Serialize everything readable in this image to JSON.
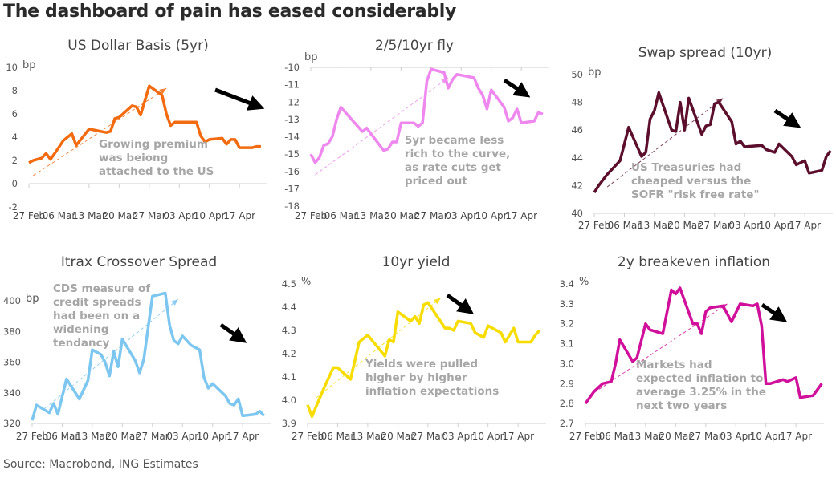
{
  "title": "The dashboard of pain has eased considerably",
  "source": "Source: Macrobond, ING Estimates",
  "chart_data": [
    {
      "type": "line",
      "title": "US Dollar Basis (5yr)",
      "unit": "bp",
      "color": "#f26b10",
      "ylim": [
        -2,
        10
      ],
      "yticks": [
        "10",
        "8",
        "6",
        "4",
        "2",
        "0",
        "-2"
      ],
      "ytick_values": [
        10,
        8,
        6,
        4,
        2,
        0,
        -2
      ],
      "xticks": [
        "27 Feb",
        "06 Mar",
        "13 Mar",
        "20 Mar",
        "27 Mar",
        "03 Apr",
        "10 Apr",
        "17 Apr"
      ],
      "axis_at": 0,
      "points": [
        [
          "27 Feb",
          1.8
        ],
        [
          "28 Feb",
          2.0
        ],
        [
          "2 Mar",
          2.2
        ],
        [
          "3 Mar",
          2.6
        ],
        [
          "4 Mar",
          2.1
        ],
        [
          "5 Mar",
          2.6
        ],
        [
          "7 Mar",
          3.7
        ],
        [
          "9 Mar",
          4.3
        ],
        [
          "10 Mar",
          3.3
        ],
        [
          "13 Mar",
          4.7
        ],
        [
          "17 Mar",
          4.4
        ],
        [
          "18 Mar",
          4.5
        ],
        [
          "19 Mar",
          5.6
        ],
        [
          "20 Mar",
          5.7
        ],
        [
          "23 Mar",
          6.7
        ],
        [
          "24 Mar",
          6.6
        ],
        [
          "25 Mar",
          5.9
        ],
        [
          "27 Mar",
          8.4
        ],
        [
          "30 Mar",
          7.6
        ],
        [
          "31 Mar",
          6.0
        ],
        [
          "1 Apr",
          5.0
        ],
        [
          "2 Apr",
          5.3
        ],
        [
          "7 Apr",
          5.3
        ],
        [
          "8 Apr",
          4.1
        ],
        [
          "9 Apr",
          3.6
        ],
        [
          "10 Apr",
          3.8
        ],
        [
          "13 Apr",
          3.9
        ],
        [
          "14 Apr",
          3.4
        ],
        [
          "15 Apr",
          3.8
        ],
        [
          "16 Apr",
          3.8
        ],
        [
          "17 Apr",
          3.1
        ],
        [
          "20 Apr",
          3.1
        ],
        [
          "21 Apr",
          3.2
        ],
        [
          "22 Apr",
          3.2
        ]
      ],
      "trend": [
        [
          "28 Feb",
          0.7
        ],
        [
          "31 Mar",
          8.2
        ]
      ],
      "annotation": [
        "Growing premium",
        "was beiong",
        "attached to the US"
      ]
    },
    {
      "type": "line",
      "title": "2/5/10yr fly",
      "unit": "bp",
      "color": "#ee88ee",
      "ylim": [
        -18,
        -10
      ],
      "yticks": [
        "-10",
        "-11",
        "-12",
        "-13",
        "-14",
        "-15",
        "-16",
        "-17",
        "-18"
      ],
      "ytick_values": [
        -10,
        -11,
        -12,
        -13,
        -14,
        -15,
        -16,
        -17,
        -18
      ],
      "xticks": [
        "27 Feb",
        "06 Mar",
        "13 Mar",
        "20 Mar",
        "27 Mar",
        "03 Apr",
        "10 Apr",
        "17 Apr"
      ],
      "axis_at": -10,
      "points": [
        [
          "27 Feb",
          -15.0
        ],
        [
          "28 Feb",
          -15.5
        ],
        [
          "1 Mar",
          -15.2
        ],
        [
          "2 Mar",
          -14.5
        ],
        [
          "3 Mar",
          -14.4
        ],
        [
          "4 Mar",
          -14.0
        ],
        [
          "5 Mar",
          -13.0
        ],
        [
          "6 Mar",
          -12.3
        ],
        [
          "11 Mar",
          -13.7
        ],
        [
          "12 Mar",
          -13.5
        ],
        [
          "16 Mar",
          -14.8
        ],
        [
          "17 Mar",
          -14.7
        ],
        [
          "18 Mar",
          -14.3
        ],
        [
          "19 Mar",
          -14.3
        ],
        [
          "20 Mar",
          -13.2
        ],
        [
          "23 Mar",
          -13.2
        ],
        [
          "24 Mar",
          -13.4
        ],
        [
          "25 Mar",
          -13.2
        ],
        [
          "26 Mar",
          -10.8
        ],
        [
          "27 Mar",
          -10.1
        ],
        [
          "30 Mar",
          -10.3
        ],
        [
          "31 Mar",
          -11.2
        ],
        [
          "1 Apr",
          -10.7
        ],
        [
          "2 Apr",
          -10.4
        ],
        [
          "6 Apr",
          -10.6
        ],
        [
          "7 Apr",
          -11.2
        ],
        [
          "8 Apr",
          -11.6
        ],
        [
          "9 Apr",
          -12.4
        ],
        [
          "10 Apr",
          -11.3
        ],
        [
          "13 Apr",
          -12.3
        ],
        [
          "14 Apr",
          -13.1
        ],
        [
          "15 Apr",
          -12.9
        ],
        [
          "16 Apr",
          -12.4
        ],
        [
          "17 Apr",
          -13.2
        ],
        [
          "20 Apr",
          -13.1
        ],
        [
          "21 Apr",
          -12.6
        ],
        [
          "22 Apr",
          -12.7
        ]
      ],
      "trend": [
        [
          "28 Feb",
          -16.2
        ],
        [
          "31 Mar",
          -10.6
        ]
      ],
      "annotation": [
        "5yr became less",
        "rich to the curve,",
        "as rate cuts get",
        "priced out"
      ]
    },
    {
      "type": "line",
      "title": "Swap spread (10yr)",
      "unit": "bp",
      "color": "#5c0f2c",
      "ylim": [
        40,
        50
      ],
      "yticks": [
        "50",
        "48",
        "46",
        "44",
        "42",
        "40"
      ],
      "ytick_values": [
        50,
        48,
        46,
        44,
        42,
        40
      ],
      "xticks": [
        "27 Feb",
        "06 Mar",
        "13 Mar",
        "20 Mar",
        "27 Mar",
        "03 Apr",
        "10 Apr",
        "17 Apr"
      ],
      "axis_at": 40,
      "points": [
        [
          "27 Feb",
          41.5
        ],
        [
          "28 Feb",
          42.0
        ],
        [
          "2 Mar",
          42.8
        ],
        [
          "5 Mar",
          43.8
        ],
        [
          "6 Mar",
          45.0
        ],
        [
          "7 Mar",
          46.2
        ],
        [
          "10 Mar",
          44.1
        ],
        [
          "11 Mar",
          44.4
        ],
        [
          "12 Mar",
          46.8
        ],
        [
          "13 Mar",
          47.4
        ],
        [
          "14 Mar",
          48.7
        ],
        [
          "17 Mar",
          46.0
        ],
        [
          "18 Mar",
          45.9
        ],
        [
          "19 Mar",
          48.0
        ],
        [
          "20 Mar",
          46.0
        ],
        [
          "21 Mar",
          48.3
        ],
        [
          "24 Mar",
          45.7
        ],
        [
          "25 Mar",
          46.3
        ],
        [
          "26 Mar",
          46.4
        ],
        [
          "27 Mar",
          47.9
        ],
        [
          "28 Mar",
          48.0
        ],
        [
          "31 Mar",
          46.6
        ],
        [
          "1 Apr",
          45.0
        ],
        [
          "2 Apr",
          45.2
        ],
        [
          "3 Apr",
          44.8
        ],
        [
          "7 Apr",
          44.9
        ],
        [
          "8 Apr",
          44.6
        ],
        [
          "10 Apr",
          44.4
        ],
        [
          "11 Apr",
          45.0
        ],
        [
          "14 Apr",
          44.1
        ],
        [
          "15 Apr",
          43.5
        ],
        [
          "17 Apr",
          43.8
        ],
        [
          "18 Apr",
          42.9
        ],
        [
          "21 Apr",
          43.1
        ],
        [
          "22 Apr",
          44.1
        ],
        [
          "23 Apr",
          44.5
        ]
      ],
      "trend": [
        [
          "2 Mar",
          41.9
        ],
        [
          "29 Mar",
          48.3
        ]
      ],
      "annotation": [
        "US Treasuries had",
        "cheaped versus the",
        "SOFR \"risk free rate\""
      ]
    },
    {
      "type": "line",
      "title": "Itrax Crossover Spread",
      "unit": "bp",
      "color": "#7cc6f0",
      "ylim": [
        320,
        400
      ],
      "yticks": [
        "400",
        "380",
        "360",
        "340",
        "320"
      ],
      "ytick_values": [
        400,
        380,
        360,
        340,
        320
      ],
      "xticks": [
        "27 Feb",
        "06 Mar",
        "13 Mar",
        "20 Mar",
        "27 Mar",
        "03 Apr",
        "10 Apr",
        "17 Apr"
      ],
      "axis_at": 320,
      "points": [
        [
          "27 Feb",
          322
        ],
        [
          "28 Feb",
          332
        ],
        [
          "3 Mar",
          327
        ],
        [
          "4 Mar",
          333
        ],
        [
          "5 Mar",
          326
        ],
        [
          "7 Mar",
          349
        ],
        [
          "10 Mar",
          336
        ],
        [
          "12 Mar",
          348
        ],
        [
          "13 Mar",
          368
        ],
        [
          "15 Mar",
          365
        ],
        [
          "16 Mar",
          360
        ],
        [
          "17 Mar",
          351
        ],
        [
          "18 Mar",
          367
        ],
        [
          "19 Mar",
          357
        ],
        [
          "20 Mar",
          375
        ],
        [
          "23 Mar",
          361
        ],
        [
          "24 Mar",
          353
        ],
        [
          "25 Mar",
          362
        ],
        [
          "27 Mar",
          403
        ],
        [
          "30 Mar",
          405
        ],
        [
          "31 Mar",
          384
        ],
        [
          "1 Apr",
          374
        ],
        [
          "2 Apr",
          372
        ],
        [
          "3 Apr",
          377
        ],
        [
          "5 Apr",
          371
        ],
        [
          "7 Apr",
          368
        ],
        [
          "8 Apr",
          350
        ],
        [
          "9 Apr",
          343
        ],
        [
          "10 Apr",
          346
        ],
        [
          "13 Apr",
          338
        ],
        [
          "14 Apr",
          333
        ],
        [
          "15 Apr",
          332
        ],
        [
          "16 Apr",
          336
        ],
        [
          "17 Apr",
          325
        ],
        [
          "20 Apr",
          326
        ],
        [
          "21 Apr",
          328
        ],
        [
          "22 Apr",
          325
        ]
      ],
      "trend": [
        [
          "2 Mar",
          330
        ],
        [
          "2 Apr",
          401
        ]
      ],
      "annotation": [
        "CDS measure of",
        "credit spreads",
        "had been on a",
        "widening",
        "tendancy"
      ]
    },
    {
      "type": "line",
      "title": "10yr yield",
      "unit": "%",
      "color": "#f7dc00",
      "ylim": [
        3.9,
        4.5
      ],
      "yticks": [
        "4.5",
        "4.4",
        "4.3",
        "4.2",
        "4.1",
        "4.0",
        "3.9"
      ],
      "ytick_values": [
        4.5,
        4.4,
        4.3,
        4.2,
        4.1,
        4.0,
        3.9
      ],
      "xticks": [
        "27 Feb",
        "06 Mar",
        "13 Mar",
        "20 Mar",
        "27 Mar",
        "03 Apr",
        "10 Apr",
        "17 Apr"
      ],
      "axis_at": 3.9,
      "points": [
        [
          "27 Feb",
          3.98
        ],
        [
          "28 Feb",
          3.93
        ],
        [
          "3 Mar",
          4.06
        ],
        [
          "5 Mar",
          4.14
        ],
        [
          "6 Mar",
          4.14
        ],
        [
          "9 Mar",
          4.09
        ],
        [
          "10 Mar",
          4.17
        ],
        [
          "11 Mar",
          4.25
        ],
        [
          "13 Mar",
          4.28
        ],
        [
          "17 Mar",
          4.19
        ],
        [
          "18 Mar",
          4.26
        ],
        [
          "19 Mar",
          4.25
        ],
        [
          "20 Mar",
          4.38
        ],
        [
          "23 Mar",
          4.34
        ],
        [
          "24 Mar",
          4.36
        ],
        [
          "25 Mar",
          4.33
        ],
        [
          "26 Mar",
          4.41
        ],
        [
          "27 Mar",
          4.42
        ],
        [
          "31 Mar",
          4.31
        ],
        [
          "1 Apr",
          4.31
        ],
        [
          "2 Apr",
          4.3
        ],
        [
          "3 Apr",
          4.34
        ],
        [
          "6 Apr",
          4.33
        ],
        [
          "7 Apr",
          4.29
        ],
        [
          "9 Apr",
          4.27
        ],
        [
          "10 Apr",
          4.32
        ],
        [
          "13 Apr",
          4.29
        ],
        [
          "14 Apr",
          4.25
        ],
        [
          "16 Apr",
          4.31
        ],
        [
          "17 Apr",
          4.25
        ],
        [
          "20 Apr",
          4.25
        ],
        [
          "21 Apr",
          4.28
        ],
        [
          "22 Apr",
          4.3
        ]
      ],
      "trend": [
        [
          "1 Mar",
          4.01
        ],
        [
          "30 Mar",
          4.44
        ]
      ],
      "annotation": [
        "Yields were pulled",
        "higher by higher",
        "inflation expectations"
      ]
    },
    {
      "type": "line",
      "title": "2y breakeven inflation",
      "unit": "%",
      "color": "#d0109a",
      "ylim": [
        2.7,
        3.4
      ],
      "yticks": [
        "3.4",
        "3.3",
        "3.2",
        "3.1",
        "3.0",
        "2.9",
        "2.8",
        "2.7"
      ],
      "ytick_values": [
        3.4,
        3.3,
        3.2,
        3.1,
        3.0,
        2.9,
        2.8,
        2.7
      ],
      "xticks": [
        "27 Feb",
        "06 Mar",
        "13 Mar",
        "20 Mar",
        "27 Mar",
        "03 Apr",
        "10 Apr",
        "17 Apr"
      ],
      "axis_at": 2.7,
      "points": [
        [
          "27 Feb",
          2.8
        ],
        [
          "1 Mar",
          2.86
        ],
        [
          "3 Mar",
          2.9
        ],
        [
          "5 Mar",
          2.91
        ],
        [
          "6 Mar",
          3.0
        ],
        [
          "7 Mar",
          3.12
        ],
        [
          "10 Mar",
          3.01
        ],
        [
          "11 Mar",
          3.03
        ],
        [
          "13 Mar",
          3.2
        ],
        [
          "14 Mar",
          3.17
        ],
        [
          "17 Mar",
          3.15
        ],
        [
          "19 Mar",
          3.37
        ],
        [
          "20 Mar",
          3.35
        ],
        [
          "21 Mar",
          3.38
        ],
        [
          "24 Mar",
          3.2
        ],
        [
          "25 Mar",
          3.2
        ],
        [
          "26 Mar",
          3.15
        ],
        [
          "27 Mar",
          3.26
        ],
        [
          "28 Mar",
          3.28
        ],
        [
          "31 Mar",
          3.29
        ],
        [
          "2 Apr",
          3.21
        ],
        [
          "4 Apr",
          3.3
        ],
        [
          "7 Apr",
          3.29
        ],
        [
          "8 Apr",
          3.3
        ],
        [
          "9 Apr",
          3.19
        ],
        [
          "10 Apr",
          2.9
        ],
        [
          "11 Apr",
          2.9
        ],
        [
          "14 Apr",
          2.92
        ],
        [
          "15 Apr",
          2.91
        ],
        [
          "17 Apr",
          2.93
        ],
        [
          "18 Apr",
          2.83
        ],
        [
          "21 Apr",
          2.84
        ],
        [
          "23 Apr",
          2.9
        ]
      ],
      "trend": [
        [
          "28 Feb",
          2.84
        ],
        [
          "1 Apr",
          3.3
        ]
      ],
      "annotation": [
        "Markets had",
        "expected inflation to",
        "average 3.25% in the",
        "next two years"
      ]
    }
  ]
}
